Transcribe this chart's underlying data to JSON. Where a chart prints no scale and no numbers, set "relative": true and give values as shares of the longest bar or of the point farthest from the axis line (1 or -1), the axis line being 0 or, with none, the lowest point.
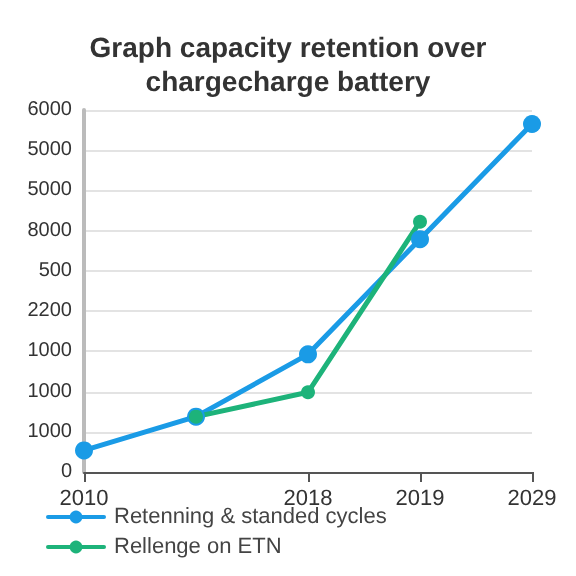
{
  "chart_data": {
    "type": "line",
    "title": "Graph capacity retention over\nchargecharge battery",
    "categories": [
      "2010",
      null,
      "2018",
      "2019",
      "2029"
    ],
    "relative": true,
    "annotations": [
      "0",
      "1000",
      "1000",
      "1000",
      "2200",
      "500",
      "8000",
      "5000",
      "5000",
      "6000"
    ],
    "series": [
      {
        "name": "Retenning & standed cycles",
        "color": "#1a9be6",
        "values": [
          0.062,
          0.159,
          0.338,
          0.669,
          1
        ]
      },
      {
        "name": "Rellenge on ETN",
        "color": "#1db37a",
        "values": [
          null,
          0.159,
          0.229,
          0.719,
          null
        ]
      }
    ],
    "grid": "y",
    "legend": "bottom",
    "marker": "circle",
    "line_style": "solid"
  }
}
